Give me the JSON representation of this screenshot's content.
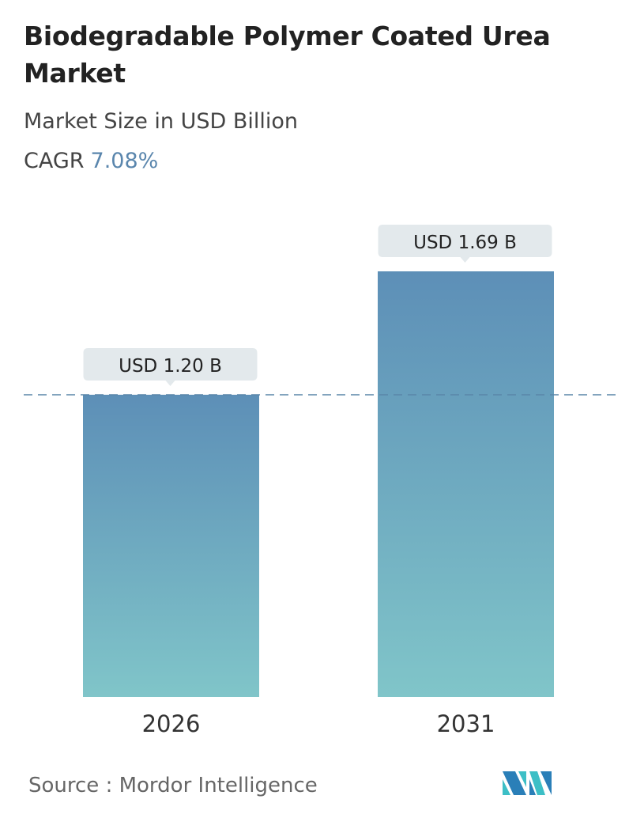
{
  "title": "Biodegradable Polymer Coated Urea Market",
  "subtitle": "Market Size in USD Billion",
  "cagr_label": "CAGR",
  "cagr_value": "7.08%",
  "source": "Source :  Mordor Intelligence",
  "logo_text": "Mordor Intelligence",
  "colors": {
    "bar_top": "#5d8fb7",
    "bar_bottom": "#80c5c9",
    "accent": "#5a86ad",
    "label_bg": "#e3e9ec"
  },
  "chart_data": {
    "type": "bar",
    "categories": [
      "2026",
      "2031"
    ],
    "values": [
      1.2,
      1.69
    ],
    "data_labels": [
      "USD 1.20 B",
      "USD 1.69 B"
    ],
    "ylabel": "Market Size in USD Billion",
    "reference_line": 1.2,
    "grid": false
  }
}
